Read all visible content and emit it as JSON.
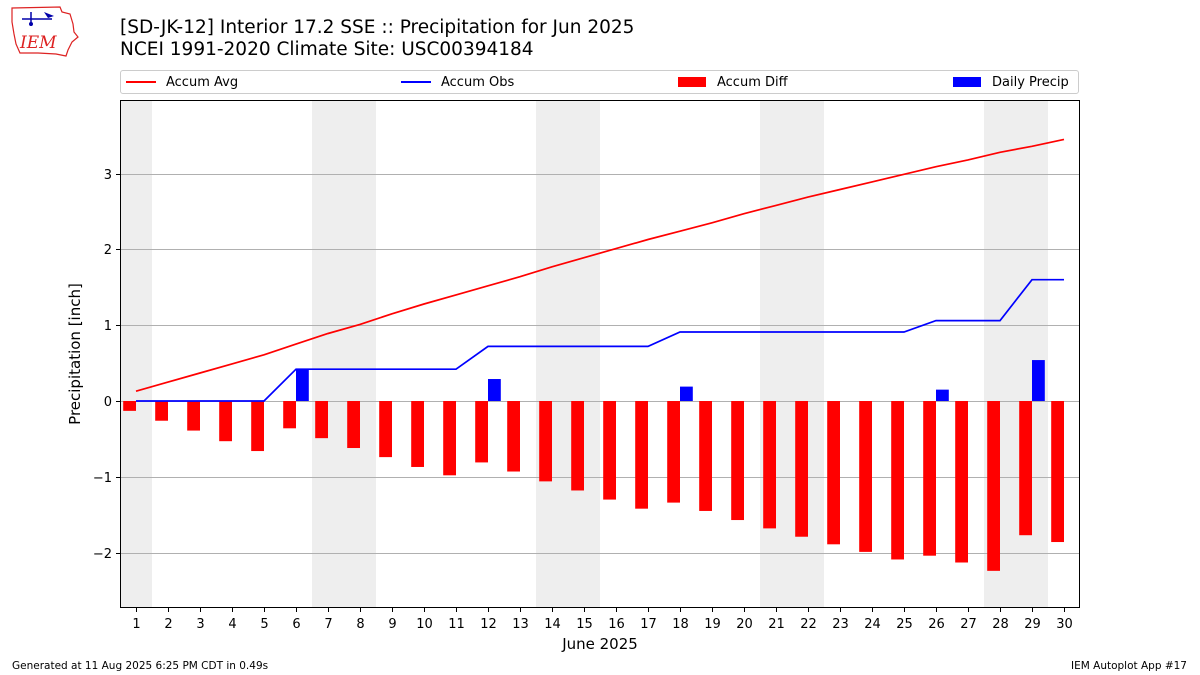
{
  "header": {
    "logo_text": "IEM",
    "title_line1": "[SD-JK-12] Interior 17.2 SSE :: Precipitation for Jun 2025",
    "title_line2": "NCEI 1991-2020 Climate Site: USC00394184"
  },
  "legend": [
    {
      "label": "Accum Avg",
      "kind": "line",
      "color": "#ff0000"
    },
    {
      "label": "Accum Obs",
      "kind": "line",
      "color": "#0000ff"
    },
    {
      "label": "Accum Diff",
      "kind": "box",
      "color": "#ff0000"
    },
    {
      "label": "Daily Precip",
      "kind": "box",
      "color": "#0000ff"
    }
  ],
  "footer": {
    "left": "Generated at 11 Aug 2025 6:25 PM CDT in 0.49s",
    "right": "IEM Autoplot App #17"
  },
  "colors": {
    "avg": "#ff0000",
    "obs": "#0000ff",
    "diff": "#ff0000",
    "daily": "#0000ff",
    "weekend_shade": "#eeeeee",
    "grid": "#b0b0b0"
  },
  "chart_data": {
    "type": "bar",
    "xlabel": "June 2025",
    "ylabel": "Precipitation [inch]",
    "x": [
      1,
      2,
      3,
      4,
      5,
      6,
      7,
      8,
      9,
      10,
      11,
      12,
      13,
      14,
      15,
      16,
      17,
      18,
      19,
      20,
      21,
      22,
      23,
      24,
      25,
      26,
      27,
      28,
      29,
      30
    ],
    "xlim": [
      0.5,
      30.5
    ],
    "ylim": [
      -2.73,
      3.97
    ],
    "yticks": [
      -2,
      -1,
      0,
      1,
      2,
      3
    ],
    "ytick_labels": [
      "−2",
      "−1",
      "0",
      "1",
      "2",
      "3"
    ],
    "grid": "horizontal",
    "legend_position": "top",
    "shaded_weekends": [
      [
        1,
        1
      ],
      [
        7,
        8
      ],
      [
        14,
        15
      ],
      [
        21,
        22
      ],
      [
        28,
        29
      ]
    ],
    "series": [
      {
        "name": "Accum Avg",
        "type": "line",
        "values": [
          0.13,
          0.25,
          0.37,
          0.49,
          0.61,
          0.75,
          0.89,
          1.01,
          1.15,
          1.28,
          1.4,
          1.52,
          1.64,
          1.77,
          1.89,
          2.01,
          2.13,
          2.24,
          2.35,
          2.47,
          2.58,
          2.69,
          2.79,
          2.89,
          2.99,
          3.09,
          3.18,
          3.28,
          3.36,
          3.45
        ]
      },
      {
        "name": "Accum Obs",
        "type": "line",
        "values": [
          0,
          0,
          0,
          0,
          0,
          0.42,
          0.42,
          0.42,
          0.42,
          0.42,
          0.42,
          0.72,
          0.72,
          0.72,
          0.72,
          0.72,
          0.72,
          0.91,
          0.91,
          0.91,
          0.91,
          0.91,
          0.91,
          0.91,
          0.91,
          1.06,
          1.06,
          1.06,
          1.6,
          1.6
        ]
      },
      {
        "name": "Accum Diff",
        "type": "bar",
        "values": [
          -0.13,
          -0.26,
          -0.39,
          -0.53,
          -0.66,
          -0.36,
          -0.49,
          -0.62,
          -0.74,
          -0.87,
          -0.98,
          -0.81,
          -0.93,
          -1.06,
          -1.18,
          -1.3,
          -1.42,
          -1.34,
          -1.45,
          -1.57,
          -1.68,
          -1.79,
          -1.89,
          -1.99,
          -2.09,
          -2.04,
          -2.13,
          -2.24,
          -1.77,
          -1.86
        ]
      },
      {
        "name": "Daily Precip",
        "type": "bar",
        "values": [
          0,
          0,
          0,
          0,
          0,
          0.42,
          0,
          0,
          0,
          0,
          0,
          0.29,
          0,
          0,
          0,
          0,
          0,
          0.19,
          0,
          0,
          0,
          0,
          0,
          0,
          0,
          0.15,
          0,
          0,
          0.54,
          0
        ]
      }
    ]
  }
}
